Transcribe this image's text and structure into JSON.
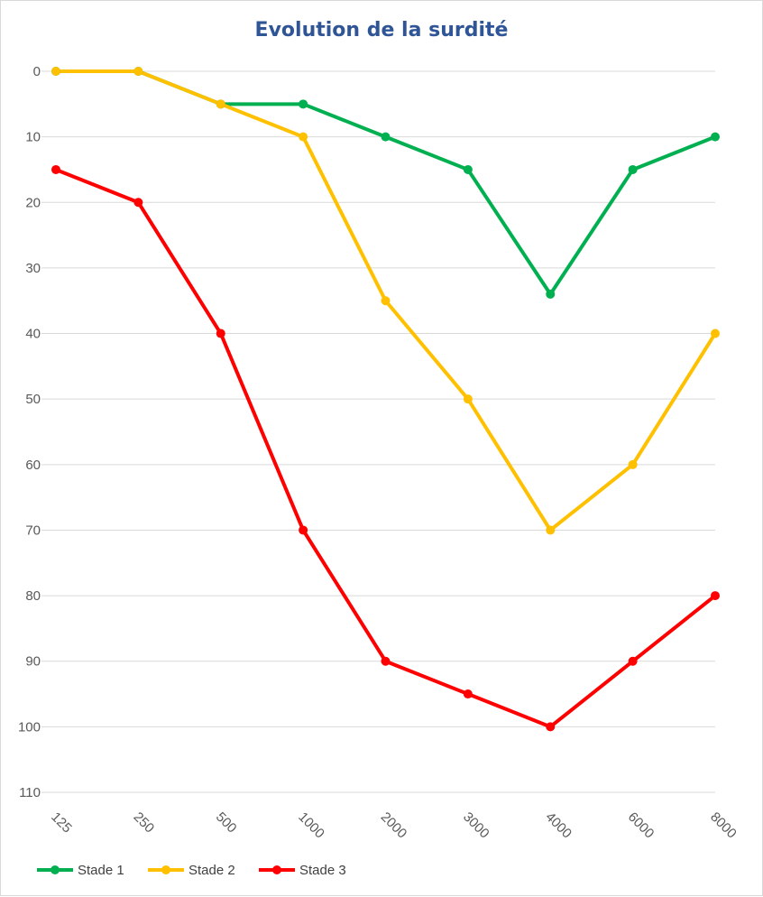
{
  "chart_data": {
    "type": "line",
    "title": "Evolution de la surdité",
    "categories": [
      "125",
      "250",
      "500",
      "1000",
      "2000",
      "3000",
      "4000",
      "6000",
      "8000"
    ],
    "yticks": [
      "0",
      "10",
      "20",
      "30",
      "40",
      "50",
      "60",
      "70",
      "80",
      "90",
      "100",
      "110"
    ],
    "ylim": [
      0,
      110
    ],
    "y_reversed": true,
    "grid": true,
    "legend_position": "bottom-left",
    "series": [
      {
        "name": "Stade 1",
        "color": "#00b050",
        "values": [
          0,
          0,
          5,
          5,
          10,
          15,
          34,
          15,
          10
        ]
      },
      {
        "name": "Stade 2",
        "color": "#ffc000",
        "values": [
          0,
          0,
          5,
          10,
          35,
          50,
          70,
          60,
          40
        ]
      },
      {
        "name": "Stade 3",
        "color": "#ff0000",
        "values": [
          15,
          20,
          40,
          70,
          90,
          95,
          100,
          90,
          80
        ]
      }
    ]
  }
}
